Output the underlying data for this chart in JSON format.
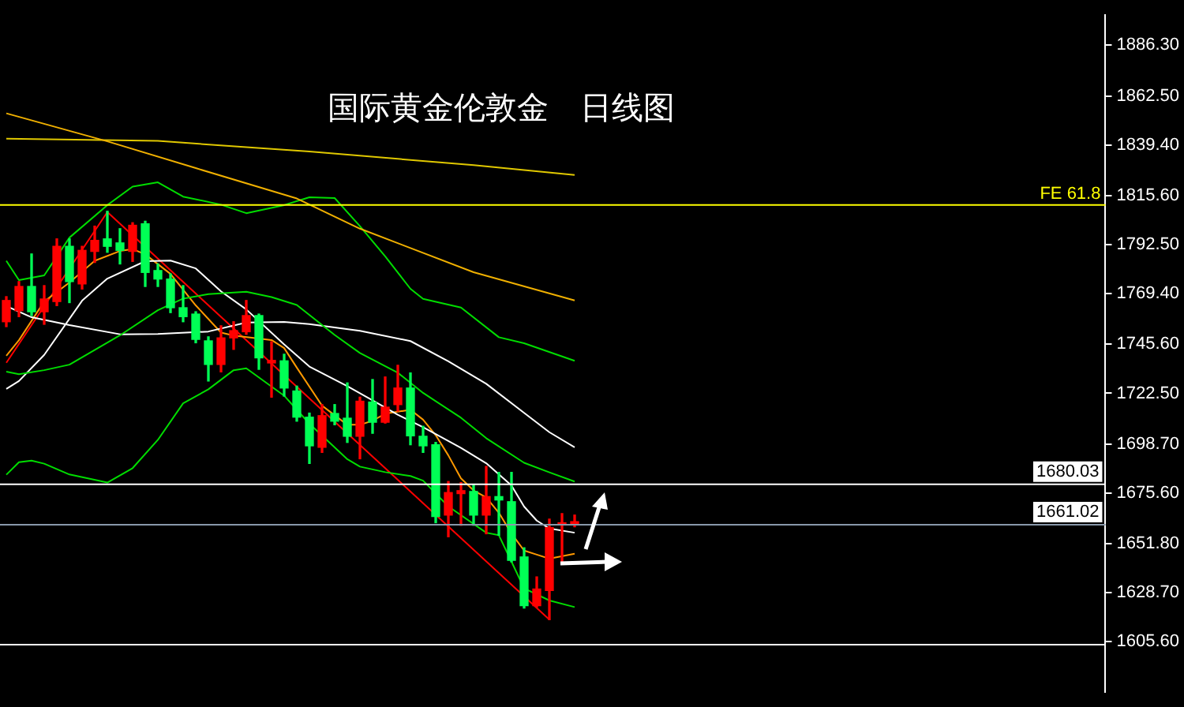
{
  "chart_data": {
    "type": "candlestick",
    "title": "国际黄金伦敦金　日线图",
    "categories": [
      null,
      null,
      null,
      null,
      null,
      null,
      null,
      null,
      null,
      null,
      null,
      null,
      null,
      null,
      null,
      null,
      null,
      null,
      null,
      null,
      null,
      null,
      null,
      null,
      null,
      null,
      null,
      null,
      null,
      null,
      null,
      null,
      null,
      null,
      null,
      null,
      null,
      null,
      null,
      null,
      null,
      null,
      null,
      null,
      null,
      null
    ],
    "ohlc": [
      [
        1756.2,
        1768.0,
        1753.9,
        1766.2
      ],
      [
        1761.4,
        1775.1,
        1758.6,
        1772.8
      ],
      [
        1772.8,
        1788.1,
        1759.1,
        1760.9
      ],
      [
        1760.9,
        1773.2,
        1755.0,
        1766.9
      ],
      [
        1765.7,
        1795.2,
        1763.8,
        1791.7
      ],
      [
        1791.7,
        1795.2,
        1765.2,
        1775.1
      ],
      [
        1774.0,
        1791.7,
        1771.6,
        1789.8
      ],
      [
        1789.3,
        1801.2,
        1784.1,
        1794.5
      ],
      [
        1795.2,
        1808.2,
        1788.9,
        1791.7
      ],
      [
        1793.3,
        1800.0,
        1783.4,
        1789.8
      ],
      [
        1789.3,
        1802.8,
        1784.6,
        1801.6
      ],
      [
        1802.3,
        1803.5,
        1772.8,
        1779.4
      ],
      [
        1780.3,
        1783.4,
        1772.8,
        1776.3
      ],
      [
        1776.3,
        1778.7,
        1760.5,
        1762.8
      ],
      [
        1762.8,
        1773.2,
        1756.2,
        1758.6
      ],
      [
        1759.8,
        1760.9,
        1746.3,
        1747.9
      ],
      [
        1747.2,
        1749.1,
        1728.3,
        1736.1
      ],
      [
        1736.1,
        1754.3,
        1732.6,
        1748.6
      ],
      [
        1748.6,
        1756.2,
        1743.2,
        1752.0
      ],
      [
        1751.5,
        1766.2,
        1750.3,
        1759.1
      ],
      [
        1759.1,
        1759.8,
        1733.8,
        1739.2
      ],
      [
        1736.8,
        1746.8,
        1720.7,
        1738.0
      ],
      [
        1737.8,
        1740.9,
        1721.2,
        1725.0
      ],
      [
        1723.6,
        1725.9,
        1709.4,
        1711.3
      ],
      [
        1711.3,
        1713.2,
        1689.5,
        1697.8
      ],
      [
        1697.1,
        1717.2,
        1694.7,
        1712.0
      ],
      [
        1713.0,
        1717.2,
        1707.7,
        1709.4
      ],
      [
        1710.8,
        1727.4,
        1699.4,
        1702.3
      ],
      [
        1702.3,
        1720.7,
        1691.7,
        1718.8
      ],
      [
        1718.4,
        1729.0,
        1703.7,
        1708.9
      ],
      [
        1708.9,
        1730.2,
        1708.5,
        1716.0
      ],
      [
        1717.2,
        1735.7,
        1714.1,
        1725.0
      ],
      [
        1725.0,
        1732.1,
        1698.3,
        1702.5
      ],
      [
        1702.3,
        1707.0,
        1694.7,
        1697.8
      ],
      [
        1698.3,
        1699.4,
        1661.6,
        1664.5
      ],
      [
        1665.2,
        1681.0,
        1655.0,
        1675.8
      ],
      [
        1675.3,
        1680.5,
        1660.4,
        1676.7
      ],
      [
        1676.3,
        1679.4,
        1660.4,
        1665.2
      ],
      [
        1665.2,
        1688.1,
        1656.4,
        1673.9
      ],
      [
        1673.9,
        1685.3,
        1655.7,
        1672.3
      ],
      [
        1671.5,
        1685.3,
        1643.2,
        1643.9
      ],
      [
        1645.5,
        1649.8,
        1621.4,
        1622.6
      ],
      [
        1622.6,
        1636.1,
        1621.9,
        1630.4
      ],
      [
        1629.7,
        1663.3,
        1616.0,
        1659.3
      ],
      [
        1660.7,
        1665.9,
        1642.7,
        1661.6
      ],
      [
        1661.1,
        1665.2,
        1659.7,
        1662.1
      ]
    ],
    "colors": [
      "#ff0000",
      "#ff0000",
      "#00ff55",
      "#ff0000",
      "#ff0000",
      "#00ff55",
      "#ff0000",
      "#ff0000",
      "#00ff55",
      "#00ff55",
      "#ff0000",
      "#00ff55",
      "#00ff55",
      "#00ff55",
      "#00ff55",
      "#00ff55",
      "#00ff55",
      "#ff0000",
      "#ff0000",
      "#ff0000",
      "#00ff55",
      "#ff0000",
      "#00ff55",
      "#00ff55",
      "#00ff55",
      "#ff0000",
      "#00ff55",
      "#00ff55",
      "#ff0000",
      "#00ff55",
      "#ff0000",
      "#ff0000",
      "#00ff55",
      "#00ff55",
      "#00ff55",
      "#ff0000",
      "#ff0000",
      "#00ff55",
      "#ff0000",
      "#00ff55",
      "#00ff55",
      "#00ff55",
      "#ff0000",
      "#ff0000",
      "#ff0000",
      "#ff0000"
    ],
    "series": [
      {
        "type": "line",
        "color": "#f0b000",
        "values": [
          1854.3,
          null,
          null,
          null,
          null,
          null,
          null,
          null,
          1841.1,
          null,
          null,
          null,
          null,
          null,
          null,
          1828.5,
          null,
          null,
          null,
          null,
          null,
          null,
          null,
          1814.2,
          null,
          null,
          null,
          null,
          1800.0,
          null,
          null,
          null,
          null,
          null,
          null,
          null,
          null,
          1779.5,
          null,
          null,
          null,
          null,
          null,
          null,
          null,
          1766.2
        ]
      },
      {
        "type": "line",
        "color": "#e0c800",
        "values": [
          1842.4,
          null,
          null,
          null,
          null,
          null,
          null,
          null,
          null,
          null,
          null,
          null,
          1841.3,
          null,
          null,
          null,
          null,
          null,
          null,
          null,
          null,
          null,
          null,
          null,
          1836.3,
          null,
          null,
          null,
          null,
          null,
          null,
          null,
          null,
          null,
          null,
          null,
          null,
          1829.9,
          null,
          null,
          null,
          null,
          null,
          null,
          null,
          1825.3
        ]
      },
      {
        "type": "line",
        "color": "#00dd00",
        "values": [
          1784.9,
          1775.8,
          null,
          1778.0,
          null,
          1795.8,
          null,
          null,
          1811.1,
          null,
          1819.8,
          null,
          1821.8,
          null,
          1815.1,
          null,
          null,
          1811.3,
          null,
          1807.3,
          null,
          null,
          1811.1,
          null,
          1814.8,
          null,
          1814.4,
          null,
          1801.2,
          null,
          1787.0,
          null,
          1771.7,
          1767.0,
          null,
          null,
          1762.9,
          null,
          null,
          1748.9,
          null,
          1746.1,
          null,
          null,
          null,
          1737.8
        ]
      },
      {
        "type": "line",
        "color": "#00dd00",
        "values": [
          1732.7,
          1731.5,
          null,
          1733.4,
          null,
          1736.0,
          null,
          null,
          null,
          1749.8,
          null,
          null,
          1761.6,
          null,
          1767.1,
          null,
          1769.2,
          null,
          null,
          1770.3,
          null,
          1767.8,
          null,
          1764.1,
          null,
          null,
          1750.0,
          null,
          1741.5,
          null,
          null,
          1732.2,
          null,
          1722.7,
          null,
          null,
          1711.0,
          null,
          1701.4,
          null,
          null,
          1689.8,
          null,
          1685.3,
          null,
          1681.0
        ]
      },
      {
        "type": "line",
        "color": "#00dd00",
        "values": [
          1684.2,
          1690.1,
          1690.8,
          1689.4,
          null,
          1684.3,
          null,
          null,
          1680.5,
          null,
          1687.3,
          null,
          1700.6,
          null,
          1717.8,
          null,
          1724.4,
          null,
          1733.4,
          1734.3,
          null,
          null,
          1721.4,
          null,
          1708.2,
          null,
          null,
          1691.5,
          1688.0,
          null,
          1685.4,
          null,
          1683.6,
          1681.4,
          null,
          1669.3,
          null,
          null,
          1656.9,
          1655.7,
          1643.3,
          1630.7,
          null,
          1625.0,
          null,
          1621.9
        ]
      },
      {
        "type": "line",
        "color": "#ffffff",
        "values": [
          1763.6,
          null,
          1758.3,
          null,
          null,
          1754.6,
          null,
          null,
          null,
          1750.3,
          null,
          null,
          1750.4,
          null,
          null,
          null,
          1751.6,
          null,
          null,
          1755.8,
          null,
          null,
          1756.1,
          null,
          1755.1,
          null,
          null,
          null,
          1751.9,
          null,
          null,
          null,
          1747.1,
          null,
          null,
          1737.6,
          null,
          null,
          1727.0,
          null,
          null,
          1713.3,
          null,
          1704.2,
          null,
          1697.1
        ]
      },
      {
        "type": "line",
        "color": "#ffffff",
        "values": [
          1724.6,
          1728.3,
          null,
          1740.6,
          null,
          null,
          1766.1,
          null,
          1776.5,
          null,
          null,
          1784.7,
          null,
          1785.0,
          null,
          1781.3,
          null,
          1770.5,
          null,
          1762.0,
          null,
          null,
          1745.5,
          null,
          1735.1,
          null,
          null,
          1725.9,
          null,
          1719.2,
          null,
          1712.4,
          null,
          1706.6,
          null,
          null,
          1696.8,
          null,
          1689.6,
          null,
          1679.1,
          1669.2,
          1662.6,
          1658.9,
          null,
          1656.9
        ]
      },
      {
        "type": "line",
        "color": "#ff9900",
        "values": [
          1740.2,
          1747.5,
          null,
          1765.7,
          null,
          1774.7,
          null,
          1784.9,
          null,
          1789.5,
          1790.4,
          1787.9,
          null,
          1778.7,
          null,
          1763.9,
          null,
          1751.1,
          1749.7,
          null,
          null,
          1747.6,
          1743.8,
          1734.6,
          null,
          1716.7,
          null,
          1707.7,
          1707.7,
          1709.6,
          1712.9,
          null,
          1714.8,
          1710.1,
          1702.8,
          1693.3,
          1682.5,
          1676.8,
          1673.5,
          1666.3,
          1656.5,
          1648.5,
          1646.6,
          1644.7,
          null,
          1647.0
        ]
      },
      {
        "type": "line",
        "color": "#ff0000",
        "values": [
          1736.9,
          null,
          null,
          null,
          null,
          null,
          null,
          null,
          1807.8,
          null,
          null,
          null,
          null,
          null,
          null,
          null,
          null,
          null,
          null,
          null,
          null,
          null,
          null,
          null,
          null,
          null,
          null,
          null,
          null,
          null,
          null,
          null,
          null,
          null,
          null,
          null,
          null,
          null,
          null,
          null,
          null,
          null,
          null,
          1616.0,
          null,
          null
        ]
      }
    ],
    "ref_lines": [
      {
        "axis": "y",
        "value": 1811.5,
        "label": "FE 61.8",
        "color": "#ffff00"
      },
      {
        "axis": "y",
        "value": 1680.03,
        "label": "1680.03",
        "color": "#ffffff"
      },
      {
        "axis": "y",
        "value": 1661.02,
        "label": "1661.02",
        "color": "#8898aa"
      },
      {
        "axis": "y",
        "value": 1604.6,
        "label": null,
        "color": "#ffffff"
      }
    ],
    "ylim": [
      1582,
      1900.5
    ],
    "yticks": [
      {
        "value": 1886.3,
        "label": "1886.30"
      },
      {
        "value": 1862.5,
        "label": "1862.50"
      },
      {
        "value": 1839.4,
        "label": "1839.40"
      },
      {
        "value": 1815.6,
        "label": "1815.60"
      },
      {
        "value": 1792.5,
        "label": "1792.50"
      },
      {
        "value": 1769.4,
        "label": "1769.40"
      },
      {
        "value": 1745.6,
        "label": "1745.60"
      },
      {
        "value": 1722.5,
        "label": "1722.50"
      },
      {
        "value": 1698.7,
        "label": "1698.70"
      },
      {
        "value": 1675.6,
        "label": "1675.60"
      },
      {
        "value": 1651.8,
        "label": "1651.80"
      },
      {
        "value": 1628.7,
        "label": "1628.70"
      },
      {
        "value": 1605.6,
        "label": "1605.60"
      }
    ],
    "tick_labels": "y",
    "grid": false,
    "legend": false
  }
}
